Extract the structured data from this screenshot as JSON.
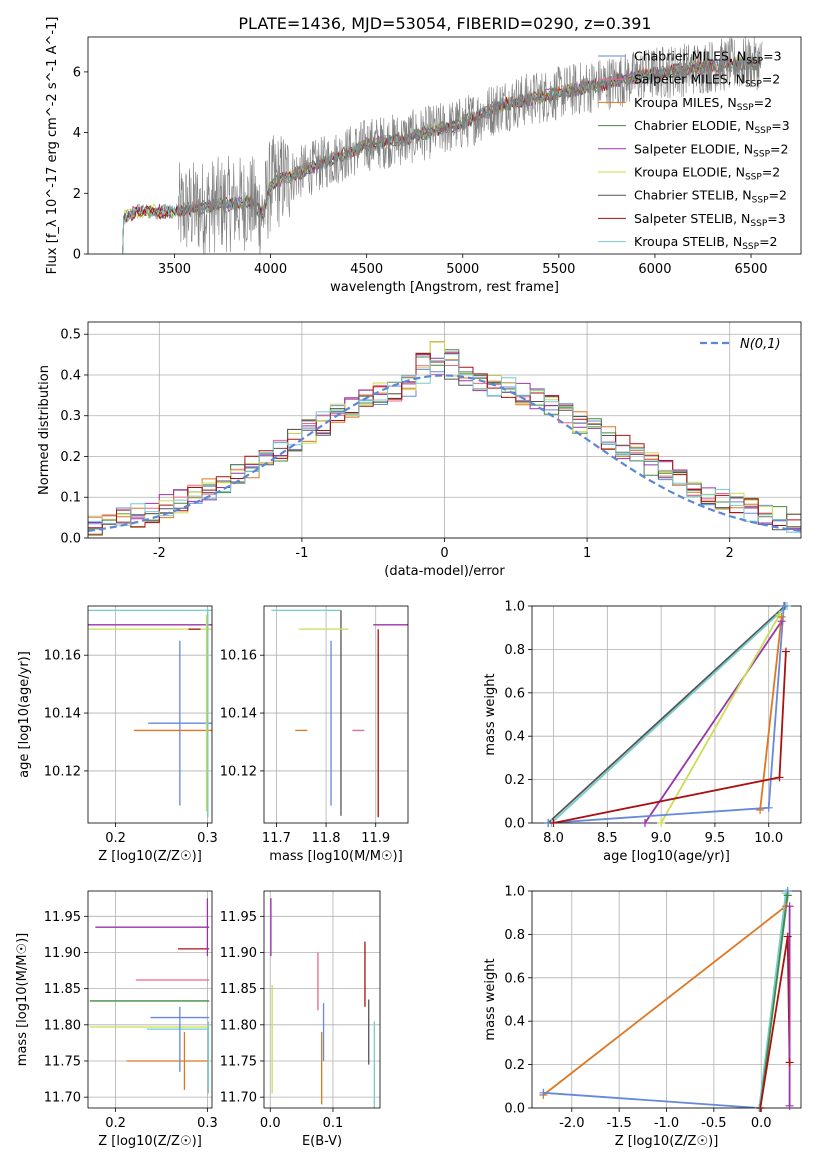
{
  "figure": {
    "title": "PLATE=1436, MJD=53054, FIBERID=0290, z=0.391"
  },
  "colors": {
    "Chabrier MILES": "#6688dd",
    "Salpeter MILES": "#ee6688",
    "Kroupa MILES": "#dd7722",
    "Chabrier ELODIE": "#448844",
    "Salpeter ELODIE": "#9933aa",
    "Kroupa ELODIE": "#ccdd55",
    "Chabrier STELIB": "#555555",
    "Salpeter STELIB": "#aa1111",
    "Kroupa STELIB": "#77cccc",
    "data": "#808080",
    "gaussian": "#5b87d6"
  },
  "legend_spectrum": [
    {
      "name": "Chabrier MILES",
      "nssp": "3"
    },
    {
      "name": "Salpeter MILES",
      "nssp": "2"
    },
    {
      "name": "Kroupa MILES",
      "nssp": "2"
    },
    {
      "name": "Chabrier ELODIE",
      "nssp": "3"
    },
    {
      "name": "Salpeter ELODIE",
      "nssp": "2"
    },
    {
      "name": "Kroupa ELODIE",
      "nssp": "2"
    },
    {
      "name": "Chabrier STELIB",
      "nssp": "2"
    },
    {
      "name": "Salpeter STELIB",
      "nssp": "3"
    },
    {
      "name": "Kroupa STELIB",
      "nssp": "2"
    }
  ],
  "chart_data": [
    {
      "id": "spectrum",
      "type": "line",
      "xlabel": "wavelength [Angstrom, rest frame]",
      "ylabel": "Flux [f_λ 10^-17 erg cm^-2 s^-1 A^-1]",
      "xlim": [
        3050,
        6760
      ],
      "ylim": [
        0,
        7.15
      ],
      "xticks": [
        3500,
        4000,
        4500,
        5000,
        5500,
        6000,
        6500
      ],
      "yticks": [
        0,
        2,
        4,
        6
      ],
      "model_continuum": [
        [
          3230,
          0
        ],
        [
          3235,
          1.2
        ],
        [
          3300,
          1.4
        ],
        [
          3500,
          1.4
        ],
        [
          3700,
          1.6
        ],
        [
          3900,
          1.7
        ],
        [
          3960,
          1.3
        ],
        [
          4000,
          2.3
        ],
        [
          4200,
          2.8
        ],
        [
          4500,
          3.6
        ],
        [
          4700,
          3.8
        ],
        [
          5000,
          4.3
        ],
        [
          5200,
          4.9
        ],
        [
          5500,
          5.3
        ],
        [
          5800,
          5.7
        ],
        [
          6000,
          5.95
        ],
        [
          6300,
          6.2
        ],
        [
          6550,
          6.3
        ]
      ],
      "data_range": [
        3520,
        6560
      ],
      "grid": false,
      "legend_placement": "top-right"
    },
    {
      "id": "residual-histogram",
      "type": "histogram",
      "xlabel": "(data-model)/error",
      "ylabel": "Normed distribution",
      "xlim": [
        -2.5,
        2.5
      ],
      "ylim": [
        0,
        0.53
      ],
      "xticks": [
        -2,
        -1,
        0,
        1,
        2
      ],
      "yticks": [
        0.0,
        0.1,
        0.2,
        0.3,
        0.4,
        0.5
      ],
      "bin_width": 0.1,
      "gaussian_label": "N(0,1)",
      "grid": true,
      "legend_placement": "top-right"
    },
    {
      "id": "age-vs-Z",
      "type": "errorbar",
      "xlabel": "Z [log10(Z/Z☉)]",
      "ylabel": "age [log10(age/yr)]",
      "xlim": [
        0.17,
        0.305
      ],
      "ylim": [
        10.102,
        10.177
      ],
      "xticks": [
        0.2,
        0.3
      ],
      "yticks": [
        10.12,
        10.14,
        10.16
      ],
      "points": [
        {
          "model": "Kroupa STELIB",
          "x": 0.2375,
          "xerr": 0.0675,
          "y": 10.1755,
          "yerr": 0.0
        },
        {
          "model": "Salpeter ELODIE",
          "x": 0.2375,
          "xerr": 0.0675,
          "y": 10.1705,
          "yerr": 0.0
        },
        {
          "model": "Kroupa ELODIE",
          "x": 0.2375,
          "xerr": 0.0675,
          "y": 10.169,
          "yerr": 0.0
        },
        {
          "model": "Salpeter STELIB",
          "x": 0.286,
          "xerr": 0.0,
          "y": 10.169,
          "yerr": 0.0
        },
        {
          "model": "Chabrier MILES",
          "x": 0.27,
          "xerr": 0.0345,
          "y": 10.1365,
          "yerr": 0.0285
        },
        {
          "model": "Kroupa MILES",
          "x": 0.2725,
          "xerr": 0.0525,
          "y": 10.134,
          "yerr": 0.0
        },
        {
          "model": "Kroupa ELODIE",
          "x": 0.299,
          "xerr": 0.0,
          "y": 10.14,
          "yerr": 0.034
        },
        {
          "model": "Kroupa STELIB",
          "x": 0.3005,
          "xerr": 0.0,
          "y": 10.14,
          "yerr": 0.036
        }
      ],
      "grid": true
    },
    {
      "id": "age-vs-mass",
      "type": "errorbar",
      "xlabel": "mass [log10(M/M☉)]",
      "ylabel": "",
      "xlim": [
        11.675,
        11.965
      ],
      "ylim": [
        10.102,
        10.177
      ],
      "xticks": [
        11.7,
        11.8,
        11.9
      ],
      "yticks": [
        10.12,
        10.14,
        10.16
      ],
      "points": [
        {
          "model": "Kroupa STELIB",
          "x": 11.76,
          "xerr": 0.07,
          "y": 10.1755,
          "yerr": 0.0
        },
        {
          "model": "Chabrier STELIB",
          "x": 11.83,
          "xerr": 0.0,
          "y": 10.14,
          "yerr": 0.0355
        },
        {
          "model": "Salpeter ELODIE",
          "x": 11.935,
          "xerr": 0.04,
          "y": 10.1705,
          "yerr": 0.0
        },
        {
          "model": "Kroupa ELODIE",
          "x": 11.795,
          "xerr": 0.05,
          "y": 10.169,
          "yerr": 0.0
        },
        {
          "model": "Salpeter STELIB",
          "x": 11.905,
          "xerr": 0.0,
          "y": 10.1365,
          "yerr": 0.0325
        },
        {
          "model": "Chabrier MILES",
          "x": 11.81,
          "xerr": 0.0,
          "y": 10.1365,
          "yerr": 0.0285
        },
        {
          "model": "Kroupa MILES",
          "x": 11.75,
          "xerr": 0.0,
          "y": 10.134,
          "yerr": 0.0
        },
        {
          "model": "Salpeter MILES",
          "x": 11.865,
          "xerr": 0.0,
          "y": 10.134,
          "yerr": 0.0
        }
      ],
      "grid": true
    },
    {
      "id": "massweight-vs-age",
      "type": "line",
      "xlabel": "age [log10(age/yr)]",
      "ylabel": "mass weight",
      "xlim": [
        7.8,
        10.3
      ],
      "ylim": [
        0,
        1
      ],
      "xticks": [
        8.0,
        8.5,
        9.0,
        9.5,
        10.0
      ],
      "yticks": [
        0.0,
        0.2,
        0.4,
        0.6,
        0.8,
        1.0
      ],
      "series": [
        {
          "model": "Chabrier STELIB",
          "points": [
            [
              7.95,
              0
            ],
            [
              10.15,
              1.0
            ]
          ]
        },
        {
          "model": "Kroupa STELIB",
          "points": [
            [
              7.98,
              0
            ],
            [
              10.17,
              1.0
            ]
          ]
        },
        {
          "model": "Salpeter ELODIE",
          "points": [
            [
              8.85,
              0
            ],
            [
              10.12,
              0.93
            ]
          ]
        },
        {
          "model": "Kroupa ELODIE",
          "points": [
            [
              9.0,
              0
            ],
            [
              10.1,
              0.96
            ]
          ]
        },
        {
          "model": "Kroupa MILES",
          "points": [
            [
              9.92,
              0.06
            ],
            [
              10.12,
              0.95
            ]
          ]
        },
        {
          "model": "Chabrier MILES",
          "points": [
            [
              7.95,
              0
            ],
            [
              10.0,
              0.07
            ],
            [
              10.14,
              1.0
            ]
          ]
        },
        {
          "model": "Salpeter STELIB",
          "points": [
            [
              8.0,
              0
            ],
            [
              10.1,
              0.21
            ],
            [
              10.16,
              0.79
            ]
          ]
        }
      ],
      "grid": true
    },
    {
      "id": "mass-vs-Z",
      "type": "errorbar",
      "xlabel": "Z [log10(Z/Z☉)]",
      "ylabel": "mass [log10(M/M☉)]",
      "xlim": [
        0.17,
        0.305
      ],
      "ylim": [
        11.685,
        11.985
      ],
      "xticks": [
        0.2,
        0.3
      ],
      "yticks": [
        11.7,
        11.75,
        11.8,
        11.85,
        11.9,
        11.95
      ],
      "points": [
        {
          "model": "Salpeter ELODIE",
          "x": 0.24,
          "xerr": 0.062,
          "y": 11.935,
          "yerr": 0.0
        },
        {
          "model": "Salpeter STELIB",
          "x": 0.285,
          "xerr": 0.017,
          "y": 11.905,
          "yerr": 0.0
        },
        {
          "model": "Salpeter MILES",
          "x": 0.262,
          "xerr": 0.04,
          "y": 11.862,
          "yerr": 0.0
        },
        {
          "model": "Chabrier ELODIE",
          "x": 0.237,
          "xerr": 0.065,
          "y": 11.833,
          "yerr": 0.0
        },
        {
          "model": "Chabrier MILES",
          "x": 0.27,
          "xerr": 0.032,
          "y": 11.81,
          "yerr": 0.0
        },
        {
          "model": "Kroupa ELODIE",
          "x": 0.237,
          "xerr": 0.065,
          "y": 11.797,
          "yerr": 0.0
        },
        {
          "model": "Kroupa STELIB",
          "x": 0.268,
          "xerr": 0.034,
          "y": 11.794,
          "yerr": 0.0
        },
        {
          "model": "Kroupa MILES",
          "x": 0.257,
          "xerr": 0.045,
          "y": 11.75,
          "yerr": 0.0
        },
        {
          "model": "Chabrier MILES",
          "x": 0.27,
          "xerr": 0.0,
          "y": 11.78,
          "yerr": 0.045
        },
        {
          "model": "Kroupa MILES",
          "x": 0.275,
          "xerr": 0.0,
          "y": 11.75,
          "yerr": 0.04
        },
        {
          "model": "Salpeter ELODIE",
          "x": 0.3,
          "xerr": 0.0,
          "y": 11.935,
          "yerr": 0.04
        },
        {
          "model": "Kroupa STELIB",
          "x": 0.301,
          "xerr": 0.0,
          "y": 11.755,
          "yerr": 0.05
        }
      ],
      "grid": true
    },
    {
      "id": "mass-vs-EBV",
      "type": "errorbar",
      "xlabel": "E(B-V)",
      "ylabel": "",
      "xlim": [
        -0.01,
        0.175
      ],
      "ylim": [
        11.685,
        11.985
      ],
      "xticks": [
        0.0,
        0.1
      ],
      "yticks": [
        11.7,
        11.75,
        11.8,
        11.85,
        11.9,
        11.95
      ],
      "points": [
        {
          "model": "Salpeter ELODIE",
          "x": 0.001,
          "xerr": 0.0,
          "y": 11.935,
          "yerr": 0.04
        },
        {
          "model": "Kroupa ELODIE",
          "x": 0.003,
          "xerr": 0.0,
          "y": 11.78,
          "yerr": 0.075
        },
        {
          "model": "Salpeter MILES",
          "x": 0.076,
          "xerr": 0.0,
          "y": 11.86,
          "yerr": 0.04
        },
        {
          "model": "Chabrier MILES",
          "x": 0.085,
          "xerr": 0.0,
          "y": 11.79,
          "yerr": 0.04
        },
        {
          "model": "Kroupa MILES",
          "x": 0.082,
          "xerr": 0.0,
          "y": 11.74,
          "yerr": 0.05
        },
        {
          "model": "Salpeter STELIB",
          "x": 0.151,
          "xerr": 0.0,
          "y": 11.87,
          "yerr": 0.045
        },
        {
          "model": "Chabrier STELIB",
          "x": 0.157,
          "xerr": 0.0,
          "y": 11.79,
          "yerr": 0.045
        },
        {
          "model": "Kroupa STELIB",
          "x": 0.166,
          "xerr": 0.0,
          "y": 11.745,
          "yerr": 0.06
        }
      ],
      "grid": true
    },
    {
      "id": "massweight-vs-Z",
      "type": "line",
      "xlabel": "Z [log10(Z/Z☉)]",
      "ylabel": "mass weight",
      "xlim": [
        -2.42,
        0.42
      ],
      "ylim": [
        0,
        1
      ],
      "xticks": [
        -2.0,
        -1.5,
        -1.0,
        -0.5,
        0.0
      ],
      "yticks": [
        0.0,
        0.2,
        0.4,
        0.6,
        0.8,
        1.0
      ],
      "series": [
        {
          "model": "Kroupa MILES",
          "points": [
            [
              -2.3,
              0.06
            ],
            [
              0.26,
              0.93
            ]
          ]
        },
        {
          "model": "Chabrier MILES",
          "points": [
            [
              -2.3,
              0.07
            ],
            [
              -0.02,
              0.0
            ],
            [
              0.28,
              1.0
            ]
          ]
        },
        {
          "model": "Kroupa STELIB",
          "points": [
            [
              -0.02,
              0.0
            ],
            [
              0.26,
              0.99
            ]
          ]
        },
        {
          "model": "Chabrier ELODIE",
          "points": [
            [
              -0.01,
              0.0
            ],
            [
              0.28,
              0.98
            ]
          ]
        },
        {
          "model": "Salpeter STELIB",
          "points": [
            [
              -0.01,
              0.0
            ],
            [
              0.28,
              0.79
            ],
            [
              0.3,
              0.21
            ]
          ]
        },
        {
          "model": "Salpeter ELODIE",
          "points": [
            [
              0.3,
              0.01
            ],
            [
              0.3,
              0.93
            ]
          ]
        }
      ],
      "grid": true
    }
  ]
}
